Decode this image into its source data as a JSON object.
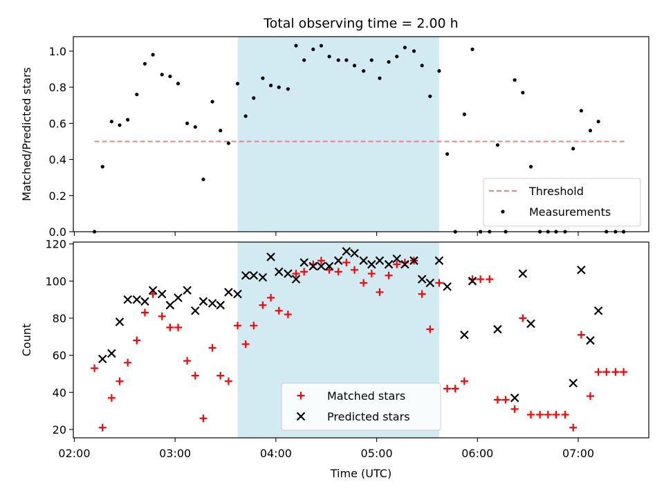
{
  "chart_data": {
    "title": "Total observing time = 2.00 h",
    "xlabel": "Time (UTC)",
    "x_ticks": [
      "02:00",
      "03:00",
      "04:00",
      "05:00",
      "06:00",
      "07:00"
    ],
    "x_tick_values": [
      2.0,
      3.0,
      4.0,
      5.0,
      6.0,
      7.0
    ],
    "xlim": [
      1.99,
      7.7
    ],
    "shaded_region": {
      "x": [
        3.62,
        5.62
      ],
      "color": "#add8e6"
    },
    "panels": [
      {
        "type": "scatter",
        "ylabel": "Matched/Predicted stars",
        "ylim": [
          0.0,
          1.08
        ],
        "y_ticks": [
          "0.0",
          "0.2",
          "0.4",
          "0.6",
          "0.8",
          "1.0"
        ],
        "y_tick_values": [
          0.0,
          0.2,
          0.4,
          0.6,
          0.8,
          1.0
        ],
        "legend": {
          "placement": "lower-right",
          "entries": [
            "Threshold",
            "Measurements"
          ]
        },
        "threshold": {
          "name": "Threshold",
          "y": 0.5,
          "x": [
            2.2,
            7.47
          ],
          "color": "#f08080",
          "style": "dashed"
        },
        "series": [
          {
            "name": "Measurements",
            "marker": "dot",
            "color": "#000000",
            "points": [
              [
                2.2,
                0.0
              ],
              [
                2.28,
                0.36
              ],
              [
                2.37,
                0.61
              ],
              [
                2.45,
                0.59
              ],
              [
                2.53,
                0.62
              ],
              [
                2.62,
                0.76
              ],
              [
                2.7,
                0.93
              ],
              [
                2.78,
                0.98
              ],
              [
                2.87,
                0.87
              ],
              [
                2.95,
                0.86
              ],
              [
                3.03,
                0.82
              ],
              [
                3.12,
                0.6
              ],
              [
                3.2,
                0.58
              ],
              [
                3.28,
                0.29
              ],
              [
                3.37,
                0.72
              ],
              [
                3.45,
                0.56
              ],
              [
                3.53,
                0.49
              ],
              [
                3.62,
                0.82
              ],
              [
                3.7,
                0.64
              ],
              [
                3.78,
                0.74
              ],
              [
                3.87,
                0.85
              ],
              [
                3.95,
                0.81
              ],
              [
                4.03,
                0.8
              ],
              [
                4.12,
                0.79
              ],
              [
                4.2,
                1.03
              ],
              [
                4.28,
                0.95
              ],
              [
                4.37,
                1.01
              ],
              [
                4.45,
                1.03
              ],
              [
                4.53,
                0.97
              ],
              [
                4.62,
                0.95
              ],
              [
                4.7,
                0.95
              ],
              [
                4.78,
                0.92
              ],
              [
                4.87,
                0.89
              ],
              [
                4.95,
                0.95
              ],
              [
                5.03,
                0.85
              ],
              [
                5.12,
                0.94
              ],
              [
                5.2,
                0.97
              ],
              [
                5.28,
                1.02
              ],
              [
                5.37,
                1.0
              ],
              [
                5.45,
                0.92
              ],
              [
                5.53,
                0.75
              ],
              [
                5.62,
                0.89
              ],
              [
                5.7,
                0.43
              ],
              [
                5.78,
                0.0
              ],
              [
                5.87,
                0.65
              ],
              [
                5.95,
                1.01
              ],
              [
                6.03,
                0.0
              ],
              [
                6.12,
                0.0
              ],
              [
                6.2,
                0.48
              ],
              [
                6.28,
                0.0
              ],
              [
                6.37,
                0.84
              ],
              [
                6.45,
                0.77
              ],
              [
                6.53,
                0.36
              ],
              [
                6.62,
                0.0
              ],
              [
                6.7,
                0.0
              ],
              [
                6.78,
                0.0
              ],
              [
                6.87,
                0.0
              ],
              [
                6.95,
                0.46
              ],
              [
                7.03,
                0.67
              ],
              [
                7.12,
                0.56
              ],
              [
                7.2,
                0.61
              ],
              [
                7.28,
                0.0
              ],
              [
                7.37,
                0.0
              ],
              [
                7.45,
                0.0
              ]
            ]
          }
        ]
      },
      {
        "type": "scatter",
        "ylabel": "Count",
        "ylim": [
          15.5,
          121
        ],
        "y_ticks": [
          "20",
          "40",
          "60",
          "80",
          "100",
          "120"
        ],
        "y_tick_values": [
          20,
          40,
          60,
          80,
          100,
          120
        ],
        "legend": {
          "placement": "lower-center",
          "entries": [
            "Matched stars",
            "Predicted stars"
          ]
        },
        "series": [
          {
            "name": "Matched stars",
            "marker": "plus",
            "color": "#ff0000",
            "points": [
              [
                2.2,
                53
              ],
              [
                2.28,
                21
              ],
              [
                2.37,
                37
              ],
              [
                2.45,
                46
              ],
              [
                2.53,
                56
              ],
              [
                2.62,
                68
              ],
              [
                2.7,
                83
              ],
              [
                2.78,
                93
              ],
              [
                2.87,
                81
              ],
              [
                2.95,
                75
              ],
              [
                3.03,
                75
              ],
              [
                3.12,
                57
              ],
              [
                3.2,
                49
              ],
              [
                3.28,
                26
              ],
              [
                3.37,
                64
              ],
              [
                3.45,
                49
              ],
              [
                3.53,
                46
              ],
              [
                3.62,
                76
              ],
              [
                3.7,
                66
              ],
              [
                3.78,
                76
              ],
              [
                3.87,
                87
              ],
              [
                3.95,
                91
              ],
              [
                4.03,
                84
              ],
              [
                4.12,
                82
              ],
              [
                4.2,
                104
              ],
              [
                4.28,
                105
              ],
              [
                4.37,
                109
              ],
              [
                4.45,
                111
              ],
              [
                4.53,
                106
              ],
              [
                4.62,
                105
              ],
              [
                4.7,
                110
              ],
              [
                4.78,
                106
              ],
              [
                4.87,
                99
              ],
              [
                4.95,
                104
              ],
              [
                5.03,
                94
              ],
              [
                5.12,
                103
              ],
              [
                5.2,
                109
              ],
              [
                5.28,
                110
              ],
              [
                5.37,
                111
              ],
              [
                5.45,
                93
              ],
              [
                5.53,
                74
              ],
              [
                5.62,
                99
              ],
              [
                5.7,
                42
              ],
              [
                5.78,
                42
              ],
              [
                5.87,
                46
              ],
              [
                5.95,
                101
              ],
              [
                6.03,
                101
              ],
              [
                6.12,
                101
              ],
              [
                6.2,
                36
              ],
              [
                6.28,
                36
              ],
              [
                6.37,
                31
              ],
              [
                6.45,
                80
              ],
              [
                6.53,
                28
              ],
              [
                6.62,
                28
              ],
              [
                6.7,
                28
              ],
              [
                6.78,
                28
              ],
              [
                6.87,
                28
              ],
              [
                6.95,
                21
              ],
              [
                7.03,
                71
              ],
              [
                7.12,
                38
              ],
              [
                7.2,
                51
              ],
              [
                7.28,
                51
              ],
              [
                7.37,
                51
              ],
              [
                7.45,
                51
              ]
            ]
          },
          {
            "name": "Predicted stars",
            "marker": "x",
            "color": "#000000",
            "points": [
              [
                2.28,
                58
              ],
              [
                2.37,
                61
              ],
              [
                2.45,
                78
              ],
              [
                2.53,
                90
              ],
              [
                2.62,
                90
              ],
              [
                2.7,
                89
              ],
              [
                2.78,
                95
              ],
              [
                2.87,
                93
              ],
              [
                2.95,
                87
              ],
              [
                3.03,
                91
              ],
              [
                3.12,
                95
              ],
              [
                3.2,
                84
              ],
              [
                3.28,
                89
              ],
              [
                3.37,
                88
              ],
              [
                3.45,
                87
              ],
              [
                3.53,
                94
              ],
              [
                3.62,
                93
              ],
              [
                3.7,
                103
              ],
              [
                3.78,
                103
              ],
              [
                3.87,
                102
              ],
              [
                3.95,
                113
              ],
              [
                4.03,
                105
              ],
              [
                4.12,
                104
              ],
              [
                4.2,
                101
              ],
              [
                4.28,
                110
              ],
              [
                4.37,
                108
              ],
              [
                4.45,
                108
              ],
              [
                4.53,
                108
              ],
              [
                4.62,
                111
              ],
              [
                4.7,
                116
              ],
              [
                4.78,
                115
              ],
              [
                4.87,
                111
              ],
              [
                4.95,
                109
              ],
              [
                5.03,
                111
              ],
              [
                5.12,
                109
              ],
              [
                5.2,
                112
              ],
              [
                5.28,
                109
              ],
              [
                5.37,
                111
              ],
              [
                5.45,
                101
              ],
              [
                5.53,
                99
              ],
              [
                5.62,
                111
              ],
              [
                5.7,
                97
              ],
              [
                5.87,
                71
              ],
              [
                5.95,
                100
              ],
              [
                6.2,
                74
              ],
              [
                6.37,
                37
              ],
              [
                6.45,
                104
              ],
              [
                6.53,
                77
              ],
              [
                6.95,
                45
              ],
              [
                7.03,
                106
              ],
              [
                7.12,
                68
              ],
              [
                7.2,
                84
              ]
            ]
          }
        ]
      }
    ]
  }
}
